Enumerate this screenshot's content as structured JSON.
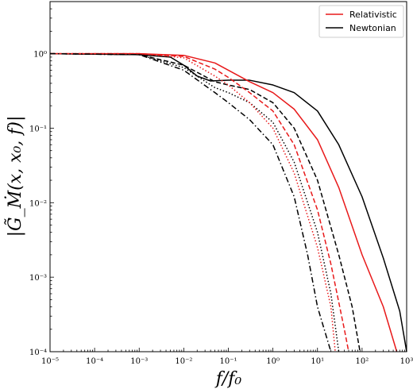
{
  "chart_data": {
    "type": "line",
    "xlabel": "f/f₀",
    "ylabel": "|G̃_Ṁ(x, x₀, f)|",
    "xscale": "log",
    "yscale": "log",
    "xlim": [
      1e-05,
      1000
    ],
    "ylim": [
      0.0001,
      5
    ],
    "x_ticks": [
      {
        "value": 1e-05,
        "label": "10⁻⁵"
      },
      {
        "value": 0.0001,
        "label": "10⁻⁴"
      },
      {
        "value": 0.001,
        "label": "10⁻³"
      },
      {
        "value": 0.01,
        "label": "10⁻²"
      },
      {
        "value": 0.1,
        "label": "10⁻¹"
      },
      {
        "value": 1,
        "label": "10⁰"
      },
      {
        "value": 10,
        "label": "10¹"
      },
      {
        "value": 100,
        "label": "10²"
      },
      {
        "value": 1000,
        "label": "10³"
      }
    ],
    "y_ticks": [
      {
        "value": 0.0001,
        "label": "10⁻⁴"
      },
      {
        "value": 0.001,
        "label": "10⁻³"
      },
      {
        "value": 0.01,
        "label": "10⁻²"
      },
      {
        "value": 0.1,
        "label": "10⁻¹"
      },
      {
        "value": 1,
        "label": "10⁰"
      }
    ],
    "legend": {
      "position": "top-right",
      "entries": [
        {
          "label": "Relativistic",
          "color": "#e8191a"
        },
        {
          "label": "Newtonian",
          "color": "#000000"
        }
      ]
    },
    "series": [
      {
        "color": "#000000",
        "dash": "solid",
        "points": [
          [
            1e-05,
            1
          ],
          [
            0.001,
            0.97
          ],
          [
            0.005,
            0.9
          ],
          [
            0.01,
            0.7
          ],
          [
            0.02,
            0.5
          ],
          [
            0.04,
            0.43
          ],
          [
            0.1,
            0.44
          ],
          [
            0.3,
            0.44
          ],
          [
            1,
            0.38
          ],
          [
            3,
            0.3
          ],
          [
            10,
            0.17
          ],
          [
            30,
            0.06
          ],
          [
            100,
            0.012
          ],
          [
            300,
            0.0018
          ],
          [
            700,
            0.00035
          ],
          [
            1000,
            0.0001
          ]
        ]
      },
      {
        "color": "#e8191a",
        "dash": "solid",
        "points": [
          [
            1e-05,
            1
          ],
          [
            0.001,
            1
          ],
          [
            0.01,
            0.95
          ],
          [
            0.05,
            0.75
          ],
          [
            0.1,
            0.6
          ],
          [
            0.3,
            0.42
          ],
          [
            1,
            0.3
          ],
          [
            3,
            0.18
          ],
          [
            10,
            0.07
          ],
          [
            30,
            0.016
          ],
          [
            100,
            0.002
          ],
          [
            300,
            0.0004
          ],
          [
            600,
            0.0001
          ]
        ]
      },
      {
        "color": "#000000",
        "dash": "dashed",
        "points": [
          [
            1e-05,
            1
          ],
          [
            0.001,
            0.97
          ],
          [
            0.01,
            0.7
          ],
          [
            0.05,
            0.42
          ],
          [
            0.1,
            0.38
          ],
          [
            0.3,
            0.33
          ],
          [
            1,
            0.22
          ],
          [
            3,
            0.1
          ],
          [
            10,
            0.02
          ],
          [
            30,
            0.002
          ],
          [
            60,
            0.0004
          ],
          [
            90,
            0.0001
          ]
        ]
      },
      {
        "color": "#e8191a",
        "dash": "dashed",
        "points": [
          [
            1e-05,
            1
          ],
          [
            0.001,
            1
          ],
          [
            0.01,
            0.92
          ],
          [
            0.05,
            0.62
          ],
          [
            0.1,
            0.48
          ],
          [
            0.3,
            0.3
          ],
          [
            1,
            0.17
          ],
          [
            3,
            0.06
          ],
          [
            10,
            0.008
          ],
          [
            20,
            0.0015
          ],
          [
            40,
            0.0002
          ],
          [
            50,
            0.0001
          ]
        ]
      },
      {
        "color": "#000000",
        "dash": "dotted",
        "points": [
          [
            1e-05,
            1
          ],
          [
            0.001,
            0.97
          ],
          [
            0.01,
            0.65
          ],
          [
            0.05,
            0.35
          ],
          [
            0.1,
            0.3
          ],
          [
            0.3,
            0.22
          ],
          [
            1,
            0.12
          ],
          [
            3,
            0.035
          ],
          [
            10,
            0.004
          ],
          [
            20,
            0.0006
          ],
          [
            30,
            0.0001
          ]
        ]
      },
      {
        "color": "#e8191a",
        "dash": "dotted",
        "points": [
          [
            1e-05,
            1
          ],
          [
            0.001,
            1
          ],
          [
            0.01,
            0.88
          ],
          [
            0.05,
            0.5
          ],
          [
            0.1,
            0.38
          ],
          [
            0.3,
            0.22
          ],
          [
            1,
            0.1
          ],
          [
            3,
            0.025
          ],
          [
            10,
            0.0025
          ],
          [
            20,
            0.0004
          ],
          [
            25,
            0.0001
          ]
        ]
      },
      {
        "color": "#000000",
        "dash": "dashdot",
        "points": [
          [
            1e-05,
            1
          ],
          [
            0.001,
            0.97
          ],
          [
            0.01,
            0.6
          ],
          [
            0.05,
            0.3
          ],
          [
            0.1,
            0.22
          ],
          [
            0.3,
            0.13
          ],
          [
            1,
            0.06
          ],
          [
            3,
            0.012
          ],
          [
            6,
            0.002
          ],
          [
            10,
            0.0004
          ],
          [
            20,
            0.0001
          ]
        ]
      }
    ]
  }
}
